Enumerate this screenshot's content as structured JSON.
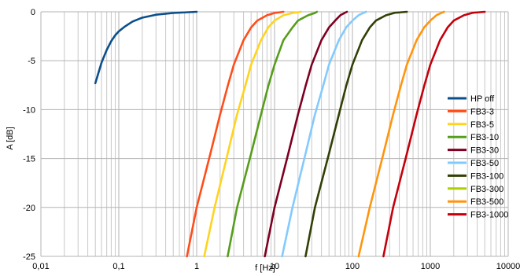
{
  "chart_data": {
    "type": "line",
    "title": "",
    "xlabel": "f [Hz]",
    "ylabel": "A [dB]",
    "x_scale": "log",
    "xlim": [
      0.01,
      10000
    ],
    "ylim": [
      -25,
      0
    ],
    "x_ticks": [
      "0,01",
      "0,1",
      "1",
      "10",
      "100",
      "1000",
      "10000"
    ],
    "y_ticks": [
      "0",
      "-5",
      "-10",
      "-15",
      "-20",
      "-25"
    ],
    "grid": true,
    "legend_position": "right",
    "series": [
      {
        "name": "HP off",
        "color": "#0b4e8a",
        "points": [
          [
            0.05,
            -7.3
          ],
          [
            0.06,
            -5.2
          ],
          [
            0.07,
            -3.9
          ],
          [
            0.08,
            -3.0
          ],
          [
            0.09,
            -2.4
          ],
          [
            0.1,
            -2.0
          ],
          [
            0.12,
            -1.5
          ],
          [
            0.15,
            -1.0
          ],
          [
            0.2,
            -0.6
          ],
          [
            0.3,
            -0.3
          ],
          [
            0.5,
            -0.12
          ],
          [
            1,
            0
          ]
        ]
      },
      {
        "name": "FB3-3",
        "color": "#ff4d1a",
        "points": [
          [
            0.75,
            -25
          ],
          [
            1,
            -20
          ],
          [
            1.5,
            -14.5
          ],
          [
            2,
            -10.5
          ],
          [
            2.5,
            -7.6
          ],
          [
            3,
            -5.4
          ],
          [
            4,
            -2.9
          ],
          [
            5,
            -1.6
          ],
          [
            6,
            -0.9
          ],
          [
            8,
            -0.35
          ],
          [
            10,
            -0.12
          ],
          [
            13,
            0
          ]
        ]
      },
      {
        "name": "FB3-5",
        "color": "#ffd320",
        "points": [
          [
            1.25,
            -25
          ],
          [
            1.7,
            -20
          ],
          [
            2.5,
            -14.5
          ],
          [
            3.3,
            -10.5
          ],
          [
            4.2,
            -7.6
          ],
          [
            5,
            -5.4
          ],
          [
            6.7,
            -2.9
          ],
          [
            8.3,
            -1.6
          ],
          [
            10,
            -0.9
          ],
          [
            13,
            -0.35
          ],
          [
            17,
            -0.12
          ],
          [
            22,
            0
          ]
        ]
      },
      {
        "name": "FB3-10",
        "color": "#579d1c",
        "points": [
          [
            2.5,
            -25
          ],
          [
            3.3,
            -20
          ],
          [
            5,
            -14.5
          ],
          [
            6.7,
            -10.5
          ],
          [
            8.3,
            -7.6
          ],
          [
            10,
            -5.4
          ],
          [
            13,
            -2.9
          ],
          [
            17,
            -1.6
          ],
          [
            20,
            -0.9
          ],
          [
            27,
            -0.35
          ],
          [
            33,
            -0.12
          ],
          [
            35,
            0
          ]
        ]
      },
      {
        "name": "FB3-30",
        "color": "#7e0021",
        "points": [
          [
            7.5,
            -25
          ],
          [
            10,
            -20
          ],
          [
            15,
            -14.5
          ],
          [
            20,
            -10.5
          ],
          [
            25,
            -7.6
          ],
          [
            30,
            -5.4
          ],
          [
            40,
            -2.9
          ],
          [
            50,
            -1.6
          ],
          [
            60,
            -0.9
          ],
          [
            70,
            -0.35
          ],
          [
            80,
            -0.1
          ],
          [
            85,
            0
          ]
        ]
      },
      {
        "name": "FB3-50",
        "color": "#83caff",
        "points": [
          [
            12.5,
            -25
          ],
          [
            17,
            -20
          ],
          [
            25,
            -14.5
          ],
          [
            33,
            -10.5
          ],
          [
            42,
            -7.6
          ],
          [
            50,
            -5.4
          ],
          [
            67,
            -2.9
          ],
          [
            83,
            -1.6
          ],
          [
            100,
            -0.9
          ],
          [
            120,
            -0.35
          ],
          [
            140,
            -0.1
          ],
          [
            150,
            0
          ]
        ]
      },
      {
        "name": "FB3-100",
        "color": "#314004",
        "points": [
          [
            25,
            -25
          ],
          [
            33,
            -20
          ],
          [
            50,
            -14.5
          ],
          [
            67,
            -10.5
          ],
          [
            83,
            -7.6
          ],
          [
            100,
            -5.4
          ],
          [
            133,
            -2.9
          ],
          [
            167,
            -1.6
          ],
          [
            200,
            -0.9
          ],
          [
            270,
            -0.35
          ],
          [
            350,
            -0.1
          ],
          [
            500,
            0
          ]
        ]
      },
      {
        "name": "FB3-300",
        "color": "#aecf00",
        "points": []
      },
      {
        "name": "FB3-500",
        "color": "#ff950e",
        "points": [
          [
            120,
            -25
          ],
          [
            167,
            -20
          ],
          [
            250,
            -14.5
          ],
          [
            333,
            -10.5
          ],
          [
            417,
            -7.6
          ],
          [
            500,
            -5.4
          ],
          [
            667,
            -2.9
          ],
          [
            833,
            -1.6
          ],
          [
            1000,
            -0.9
          ],
          [
            1200,
            -0.35
          ],
          [
            1400,
            -0.1
          ],
          [
            1500,
            0
          ]
        ]
      },
      {
        "name": "FB3-1000",
        "color": "#c5000b",
        "points": [
          [
            250,
            -25
          ],
          [
            333,
            -20
          ],
          [
            500,
            -14.5
          ],
          [
            667,
            -10.5
          ],
          [
            833,
            -7.6
          ],
          [
            1000,
            -5.4
          ],
          [
            1333,
            -2.9
          ],
          [
            1667,
            -1.6
          ],
          [
            2000,
            -0.9
          ],
          [
            2700,
            -0.35
          ],
          [
            3500,
            -0.1
          ],
          [
            5000,
            0
          ]
        ]
      }
    ]
  }
}
